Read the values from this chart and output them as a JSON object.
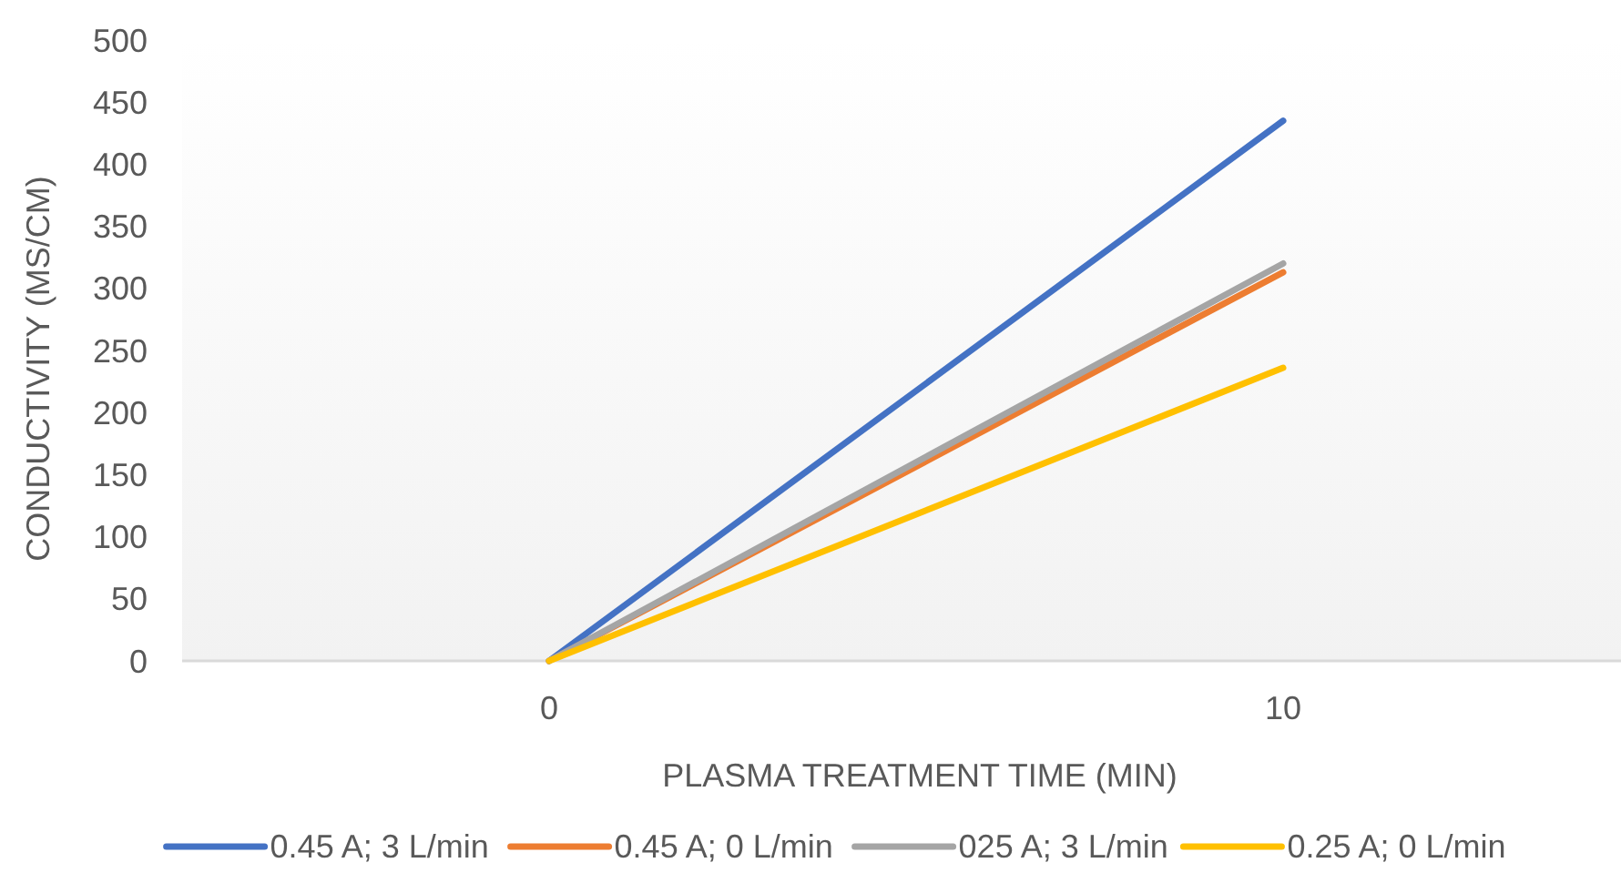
{
  "chart_data": {
    "type": "line",
    "xlabel": "PLASMA TREATMENT TIME (MIN)",
    "ylabel": "CONDUCTIVITY (MS/CM)",
    "categories": [
      "0",
      "10"
    ],
    "series": [
      {
        "name": "0.45 A; 3 L/min",
        "color": "#4472c4",
        "values": [
          0,
          435
        ]
      },
      {
        "name": "0.45 A; 0 L/min",
        "color": "#ed7d31",
        "values": [
          0,
          313
        ]
      },
      {
        "name": "025 A; 3 L/min",
        "color": "#a5a5a5",
        "values": [
          0,
          320
        ]
      },
      {
        "name": "0.25 A; 0 L/min",
        "color": "#ffc000",
        "values": [
          0,
          236
        ]
      }
    ],
    "ylim": [
      0,
      500
    ],
    "yticks": [
      0,
      50,
      100,
      150,
      200,
      250,
      300,
      350,
      400,
      450,
      500
    ],
    "legend": "bottom",
    "marker": "none",
    "line_style": "solid"
  }
}
